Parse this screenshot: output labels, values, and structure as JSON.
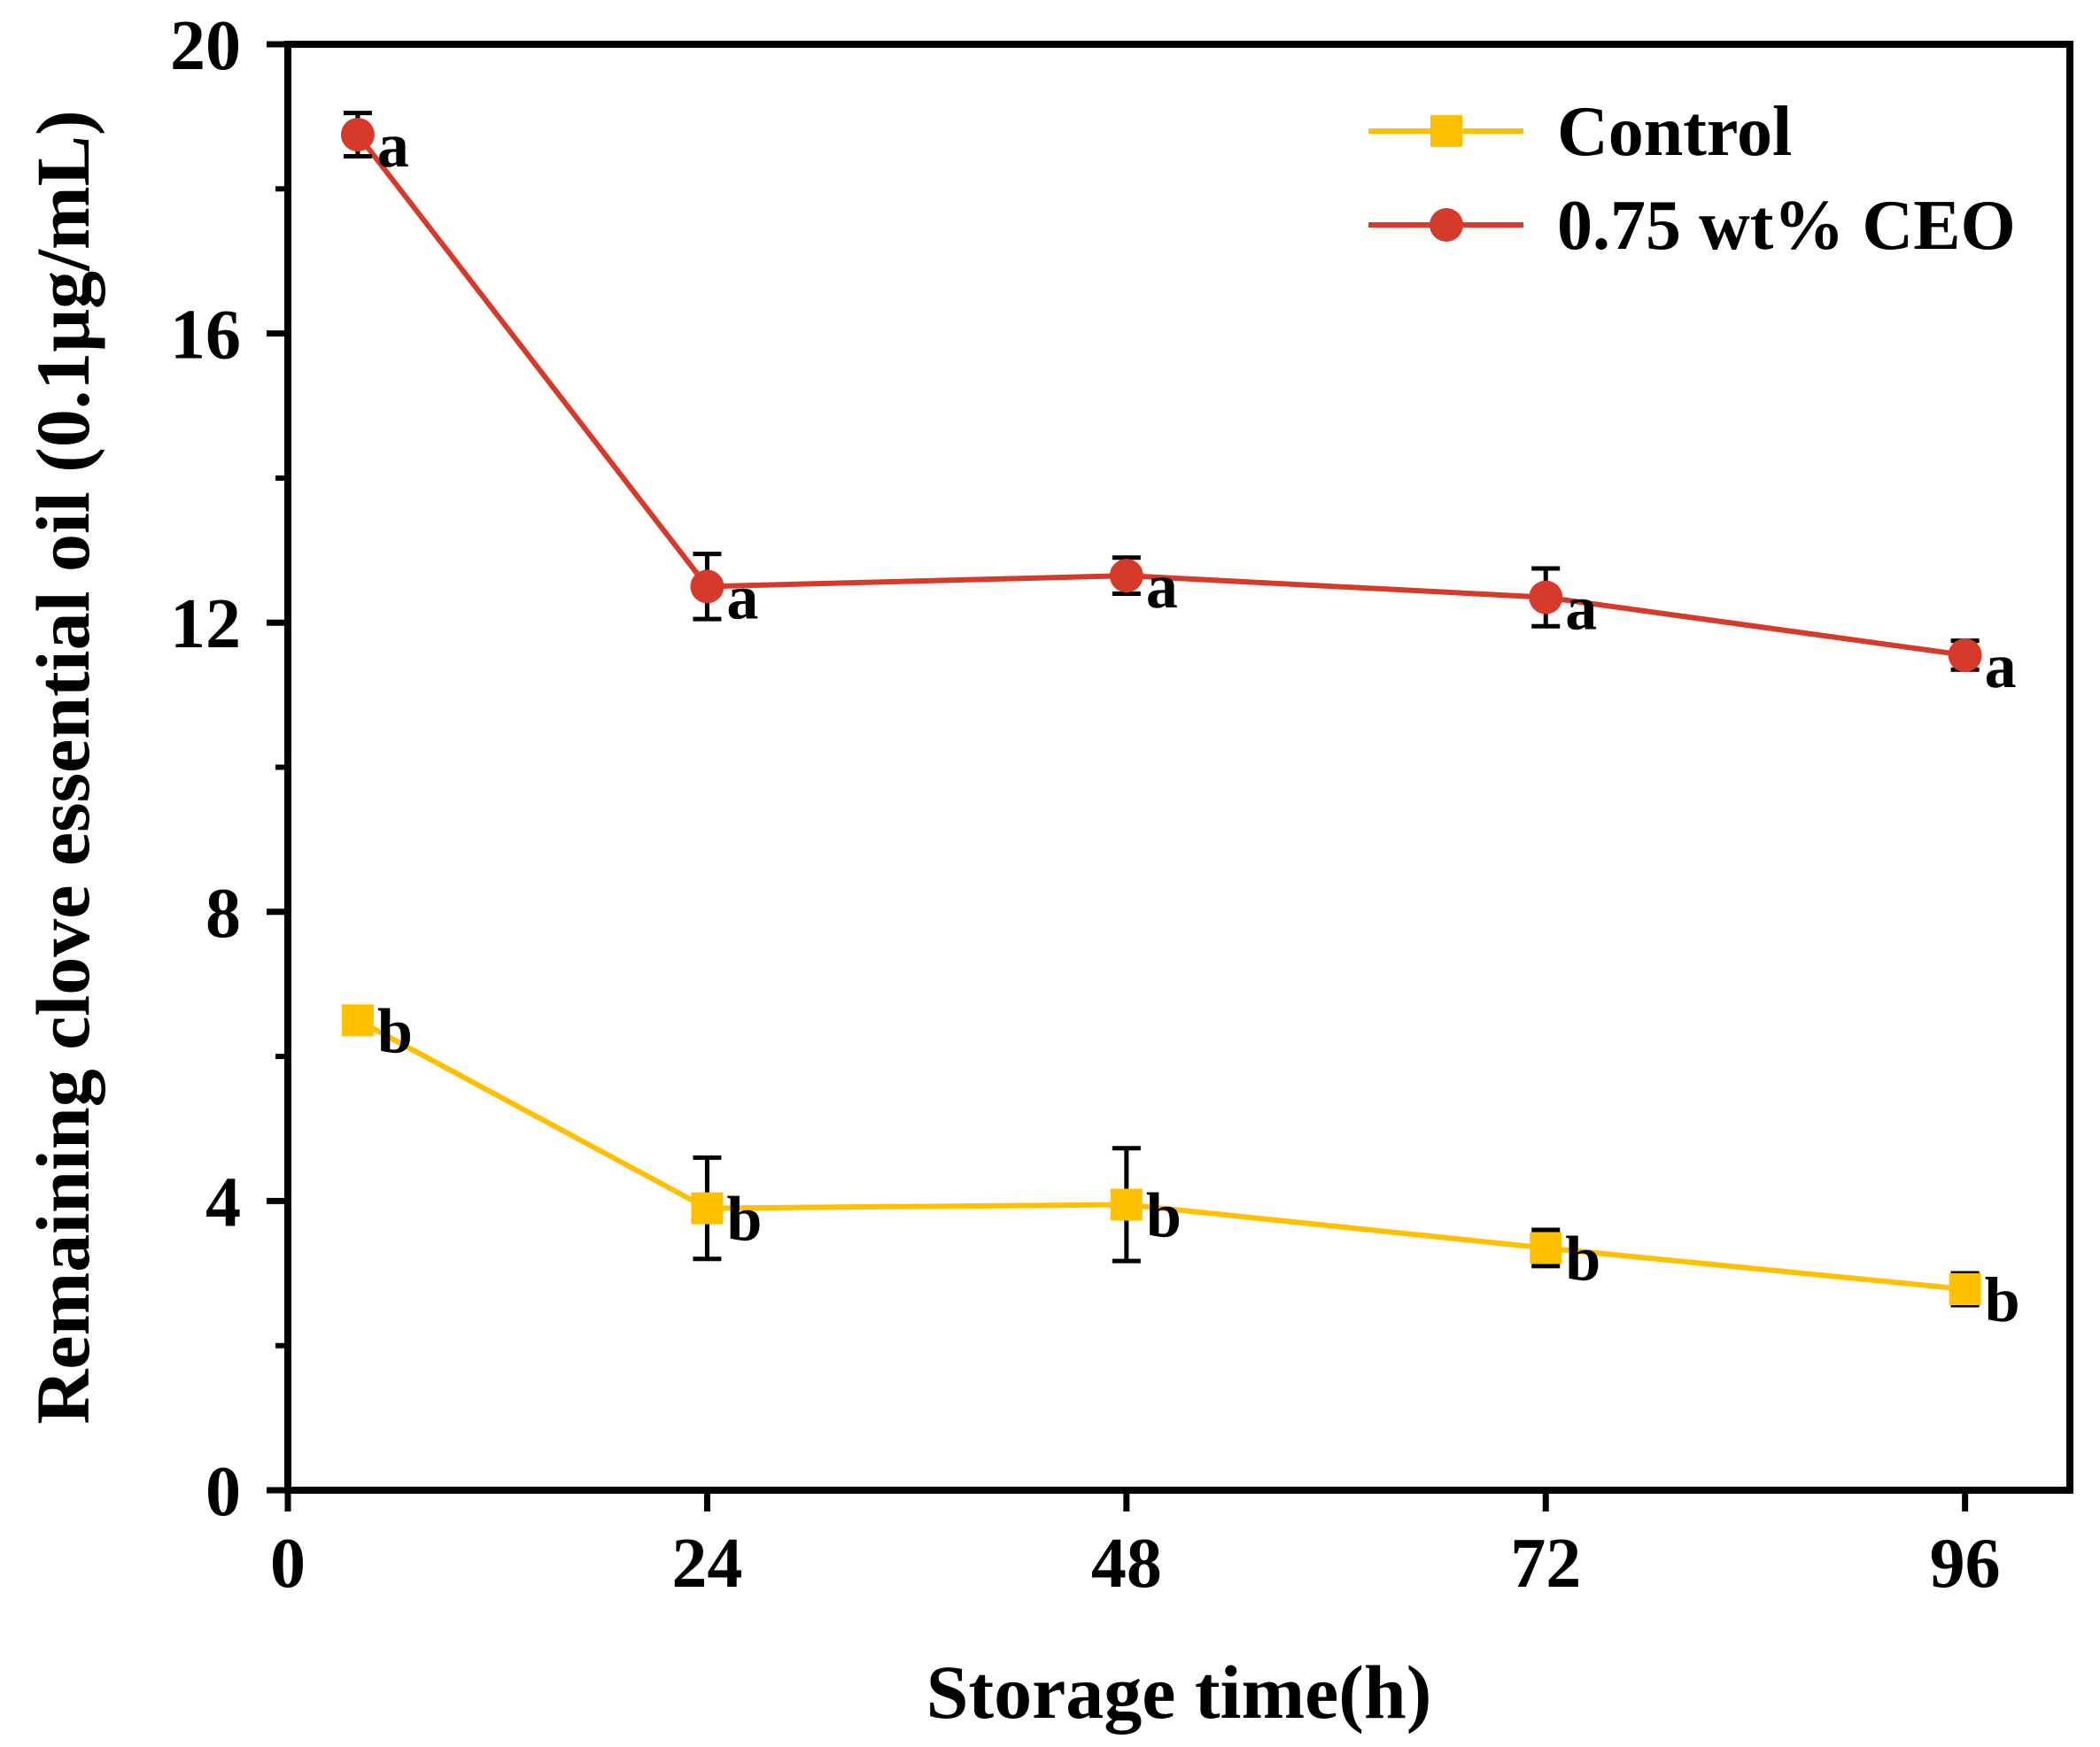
{
  "chart_data": {
    "type": "line",
    "title": "",
    "xlabel": "Storage time(h)",
    "ylabel": "Remaining clove essential oil (0.1μg/mL)",
    "xlim": [
      0,
      102
    ],
    "ylim": [
      0,
      20
    ],
    "xticks": [
      0,
      24,
      48,
      72,
      96
    ],
    "xtick_labels": [
      "0",
      "24",
      "48",
      "72",
      "96"
    ],
    "yticks": [
      0,
      4,
      8,
      12,
      16,
      20
    ],
    "ytick_labels": [
      "0",
      "4",
      "8",
      "12",
      "16",
      "20"
    ],
    "y_minor_ticks": [
      2,
      6,
      10,
      14,
      18
    ],
    "grid": false,
    "legend_position": "top-right",
    "series": [
      {
        "name": "Control",
        "color": "#FFC000",
        "marker": "square",
        "x": [
          4,
          24,
          48,
          72,
          96
        ],
        "y": [
          6.5,
          3.9,
          3.95,
          3.35,
          2.78
        ],
        "error": [
          0.05,
          0.7,
          0.78,
          0.25,
          0.22
        ],
        "annotations": [
          "b",
          "b",
          "b",
          "b",
          "b"
        ]
      },
      {
        "name": "0.75 wt% CEO",
        "color": "#D63A2B",
        "marker": "circle",
        "x": [
          4,
          24,
          48,
          72,
          96
        ],
        "y": [
          18.75,
          12.5,
          12.65,
          12.35,
          11.55
        ],
        "error": [
          0.3,
          0.45,
          0.25,
          0.4,
          0.2
        ],
        "annotations": [
          "a",
          "a",
          "a",
          "a",
          "a"
        ]
      }
    ]
  }
}
